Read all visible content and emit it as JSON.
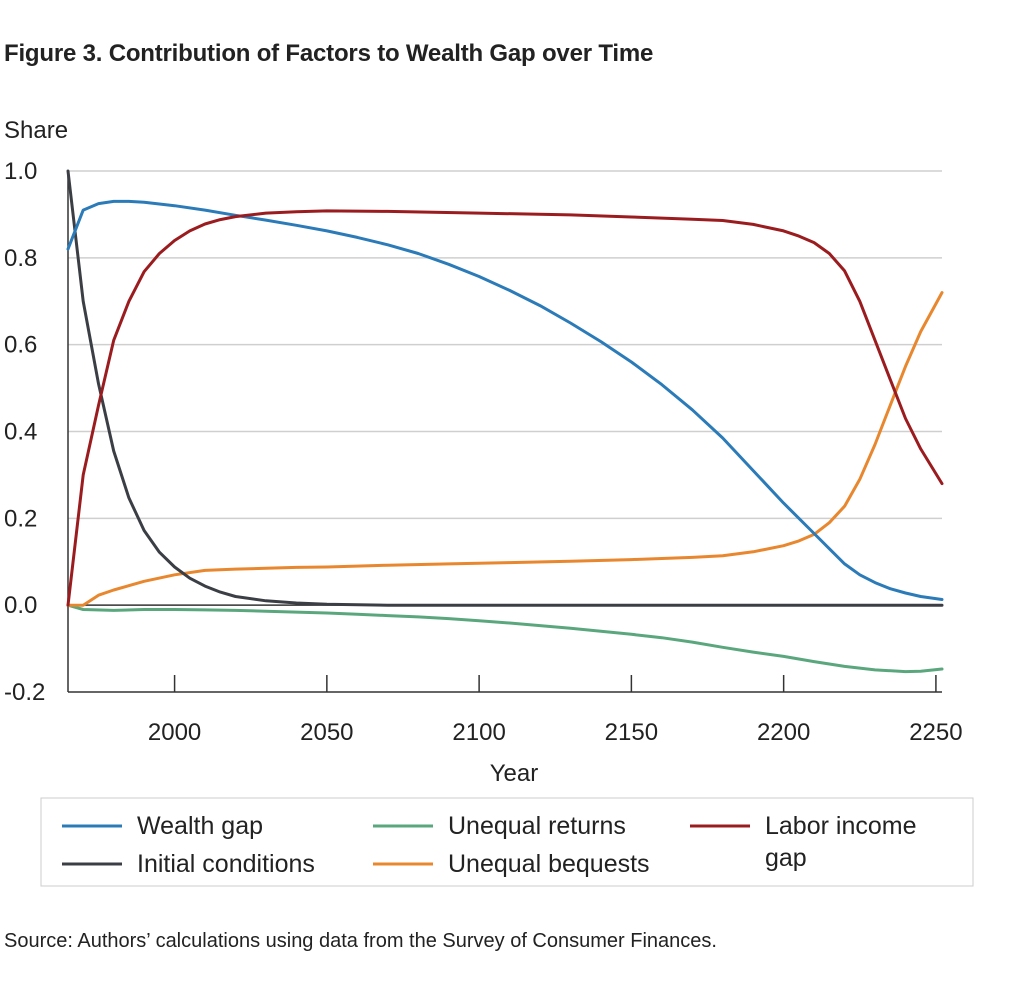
{
  "title": "Figure 3. Contribution of Factors to Wealth Gap over Time",
  "source": "Source: Authors’ calculations using data from the Survey of Consumer Finances.",
  "chart_data": {
    "type": "line",
    "title": "Figure 3. Contribution of Factors to Wealth Gap over Time",
    "xlabel": "Year",
    "ylabel": "Share",
    "xlim": [
      1965,
      2252
    ],
    "ylim": [
      -0.2,
      1.0
    ],
    "x_ticks": [
      2000,
      2050,
      2100,
      2150,
      2200,
      2250
    ],
    "x_tick_labels": [
      "2000",
      "2050",
      "2100",
      "2150",
      "2200",
      "2250"
    ],
    "y_ticks": [
      -0.2,
      0.0,
      0.2,
      0.4,
      0.6,
      0.8,
      1.0
    ],
    "y_tick_labels": [
      "-0.2",
      "0.0",
      "0.2",
      "0.4",
      "0.6",
      "0.8",
      "1.0"
    ],
    "grid": "horizontal",
    "legend_position": "bottom",
    "series": [
      {
        "name": "Wealth gap",
        "color": "#2b7bb9",
        "x": [
          1965,
          1970,
          1975,
          1980,
          1985,
          1990,
          2000,
          2010,
          2020,
          2030,
          2040,
          2050,
          2060,
          2070,
          2080,
          2090,
          2100,
          2110,
          2120,
          2130,
          2140,
          2150,
          2160,
          2170,
          2180,
          2190,
          2200,
          2210,
          2215,
          2220,
          2225,
          2230,
          2235,
          2240,
          2245,
          2252
        ],
        "y": [
          0.82,
          0.91,
          0.925,
          0.93,
          0.93,
          0.928,
          0.92,
          0.91,
          0.898,
          0.887,
          0.875,
          0.862,
          0.847,
          0.83,
          0.81,
          0.785,
          0.757,
          0.725,
          0.69,
          0.65,
          0.607,
          0.56,
          0.508,
          0.45,
          0.385,
          0.31,
          0.235,
          0.165,
          0.13,
          0.095,
          0.07,
          0.052,
          0.038,
          0.028,
          0.02,
          0.013
        ]
      },
      {
        "name": "Initial conditions",
        "color": "#3b3f45",
        "x": [
          1965,
          1970,
          1975,
          1980,
          1985,
          1990,
          1995,
          2000,
          2005,
          2010,
          2015,
          2020,
          2030,
          2040,
          2050,
          2070,
          2100,
          2150,
          2200,
          2252
        ],
        "y": [
          1.0,
          0.7,
          0.51,
          0.355,
          0.247,
          0.172,
          0.122,
          0.088,
          0.062,
          0.044,
          0.03,
          0.02,
          0.01,
          0.005,
          0.002,
          0.0,
          0.0,
          0.0,
          0.0,
          0.0
        ]
      },
      {
        "name": "Unequal returns",
        "color": "#5aa77e",
        "x": [
          1965,
          1970,
          1980,
          1990,
          2000,
          2010,
          2020,
          2030,
          2040,
          2050,
          2060,
          2070,
          2080,
          2090,
          2100,
          2110,
          2120,
          2130,
          2140,
          2150,
          2160,
          2170,
          2180,
          2190,
          2200,
          2210,
          2220,
          2230,
          2240,
          2245,
          2252
        ],
        "y": [
          0.0,
          -0.01,
          -0.012,
          -0.01,
          -0.01,
          -0.011,
          -0.012,
          -0.014,
          -0.016,
          -0.018,
          -0.021,
          -0.024,
          -0.027,
          -0.031,
          -0.036,
          -0.041,
          -0.047,
          -0.053,
          -0.06,
          -0.067,
          -0.075,
          -0.085,
          -0.097,
          -0.108,
          -0.118,
          -0.13,
          -0.141,
          -0.149,
          -0.153,
          -0.152,
          -0.147
        ]
      },
      {
        "name": "Unequal bequests",
        "color": "#e8872e",
        "x": [
          1965,
          1970,
          1975,
          1980,
          1990,
          2000,
          2010,
          2020,
          2030,
          2040,
          2050,
          2070,
          2090,
          2110,
          2130,
          2150,
          2170,
          2180,
          2190,
          2200,
          2205,
          2210,
          2215,
          2220,
          2225,
          2230,
          2235,
          2240,
          2245,
          2252
        ],
        "y": [
          0.0,
          0.0,
          0.023,
          0.035,
          0.055,
          0.07,
          0.08,
          0.083,
          0.085,
          0.087,
          0.088,
          0.092,
          0.095,
          0.098,
          0.101,
          0.105,
          0.11,
          0.114,
          0.123,
          0.137,
          0.148,
          0.163,
          0.19,
          0.228,
          0.29,
          0.37,
          0.46,
          0.55,
          0.63,
          0.72
        ]
      },
      {
        "name": "Labor income gap",
        "color": "#9b1c1f",
        "x": [
          1965,
          1970,
          1975,
          1980,
          1985,
          1990,
          1995,
          2000,
          2005,
          2010,
          2015,
          2020,
          2030,
          2040,
          2050,
          2070,
          2100,
          2130,
          2150,
          2170,
          2180,
          2190,
          2200,
          2205,
          2210,
          2215,
          2220,
          2225,
          2230,
          2235,
          2240,
          2245,
          2252
        ],
        "y": [
          0.0,
          0.3,
          0.46,
          0.61,
          0.7,
          0.768,
          0.81,
          0.84,
          0.862,
          0.878,
          0.888,
          0.895,
          0.903,
          0.906,
          0.908,
          0.907,
          0.903,
          0.899,
          0.894,
          0.889,
          0.886,
          0.877,
          0.862,
          0.85,
          0.835,
          0.81,
          0.77,
          0.7,
          0.61,
          0.52,
          0.43,
          0.36,
          0.28
        ]
      }
    ]
  }
}
